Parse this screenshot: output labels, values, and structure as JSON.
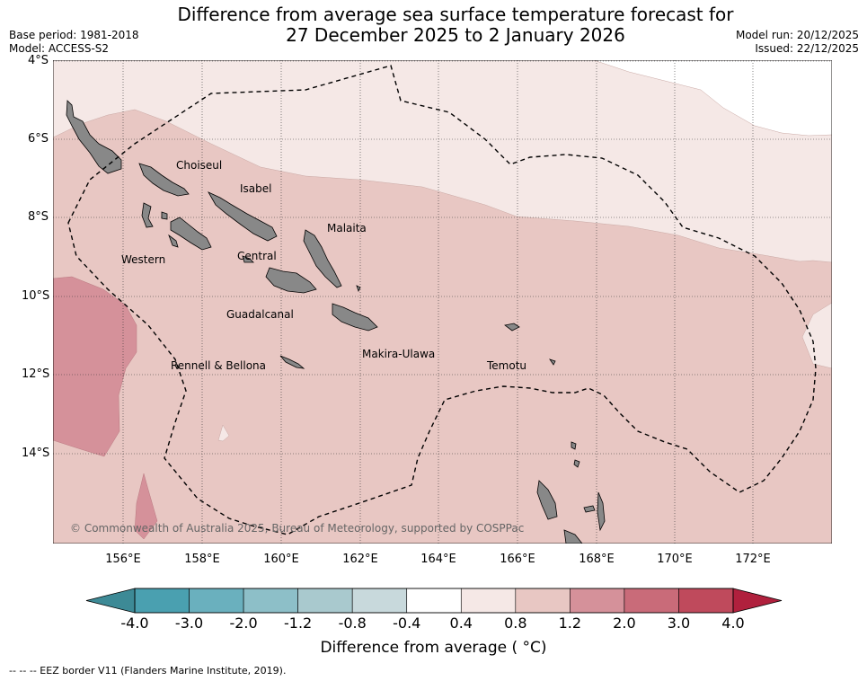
{
  "title": {
    "line1": "Difference from average sea surface temperature forecast for",
    "line2": "27 December 2025 to 2 January 2026"
  },
  "meta": {
    "base_period": "Base period: 1981-2018",
    "model": "Model: ACCESS-S2",
    "model_run": "Model run: 20/12/2025",
    "issued": "Issued: 22/12/2025"
  },
  "map": {
    "lat_labels": [
      "4°S",
      "6°S",
      "8°S",
      "10°S",
      "12°S",
      "14°S"
    ],
    "lon_labels": [
      "156°E",
      "158°E",
      "160°E",
      "162°E",
      "164°E",
      "166°E",
      "168°E",
      "170°E",
      "172°E"
    ],
    "provinces": [
      "Choiseul",
      "Isabel",
      "Malaita",
      "Western",
      "Central",
      "Guadalcanal",
      "Makira-Ulawa",
      "Rennell & Bellona",
      "Temotu"
    ],
    "copyright": "© Commonwealth of Australia 2025, Bureau of Meteorology, supported by COSPPac",
    "colors": {
      "land": "#888888",
      "anom_0_4_0_8": "#f5e8e6",
      "anom_0_8_1_2": "#e8c7c3",
      "anom_1_2_2_0": "#d5919a"
    }
  },
  "colorbar": {
    "tick_labels": [
      "-4.0",
      "-3.0",
      "-2.0",
      "-1.2",
      "-0.8",
      "-0.4",
      "0.4",
      "0.8",
      "1.2",
      "2.0",
      "3.0",
      "4.0"
    ],
    "colors": [
      "#4aa0b0",
      "#6ab0be",
      "#8dbfc8",
      "#a9c9ce",
      "#c8d9dc",
      "#ffffff",
      "#f5e8e6",
      "#e8c7c3",
      "#d5919a",
      "#c96b79",
      "#bf4a5c"
    ],
    "extend_low": "#3d8a96",
    "extend_high": "#b0203d",
    "label": "Difference from average ( °C)"
  },
  "footnote": "--  --  -- EEZ border V11 (Flanders Marine Institute, 2019)."
}
